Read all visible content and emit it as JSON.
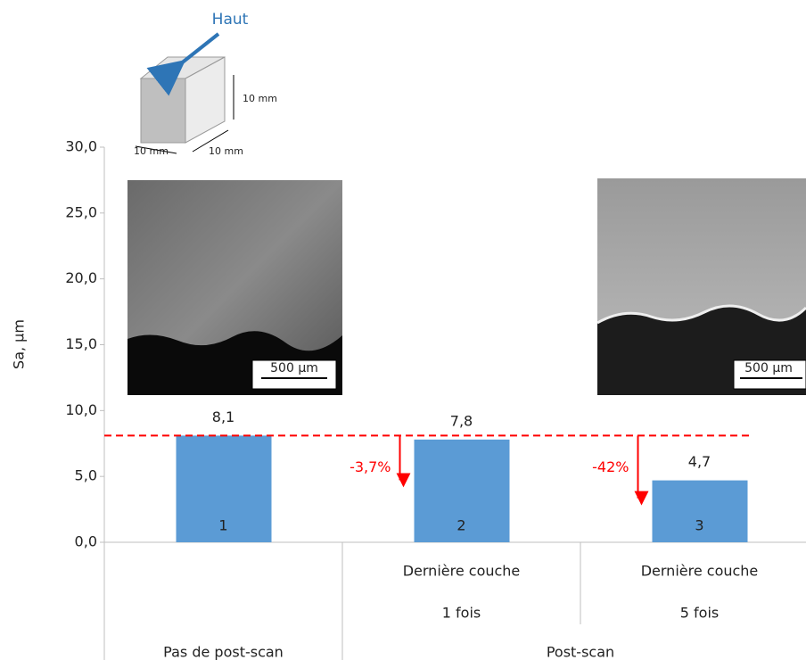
{
  "chart_data": {
    "type": "bar",
    "y_label": "Sa, µm",
    "categories": [
      null,
      "Dernière couche",
      "Dernière couche"
    ],
    "categories_line2": [
      null,
      "1 fois",
      "5 fois"
    ],
    "groups": [
      "Pas de post-scan",
      "Post-scan"
    ],
    "values": [
      8.1,
      7.8,
      4.7
    ],
    "value_labels": [
      "8,1",
      "7,8",
      "4,7"
    ],
    "bar_labels": [
      "1",
      "2",
      "3"
    ],
    "color": "#5b9bd5",
    "reference_line": 8.1,
    "reference_color": "#ff0000",
    "change_labels": [
      null,
      "-3,7%",
      "-42%"
    ],
    "ylim": [
      0,
      30
    ],
    "yticks": [
      {
        "value": 0,
        "label": "0,0"
      },
      {
        "value": 5,
        "label": "5,0"
      },
      {
        "value": 10,
        "label": "10,0"
      },
      {
        "value": 15,
        "label": "15,0"
      },
      {
        "value": 20,
        "label": "20,0"
      },
      {
        "value": 25,
        "label": "25,0"
      },
      {
        "value": 30,
        "label": "30,0"
      }
    ],
    "grid": false,
    "image_scale_labels": [
      "500 µm",
      "500 µm"
    ],
    "cube": {
      "top_label": "Haut",
      "dimension_labels": [
        "10 mm",
        "10 mm",
        "10 mm"
      ]
    }
  }
}
